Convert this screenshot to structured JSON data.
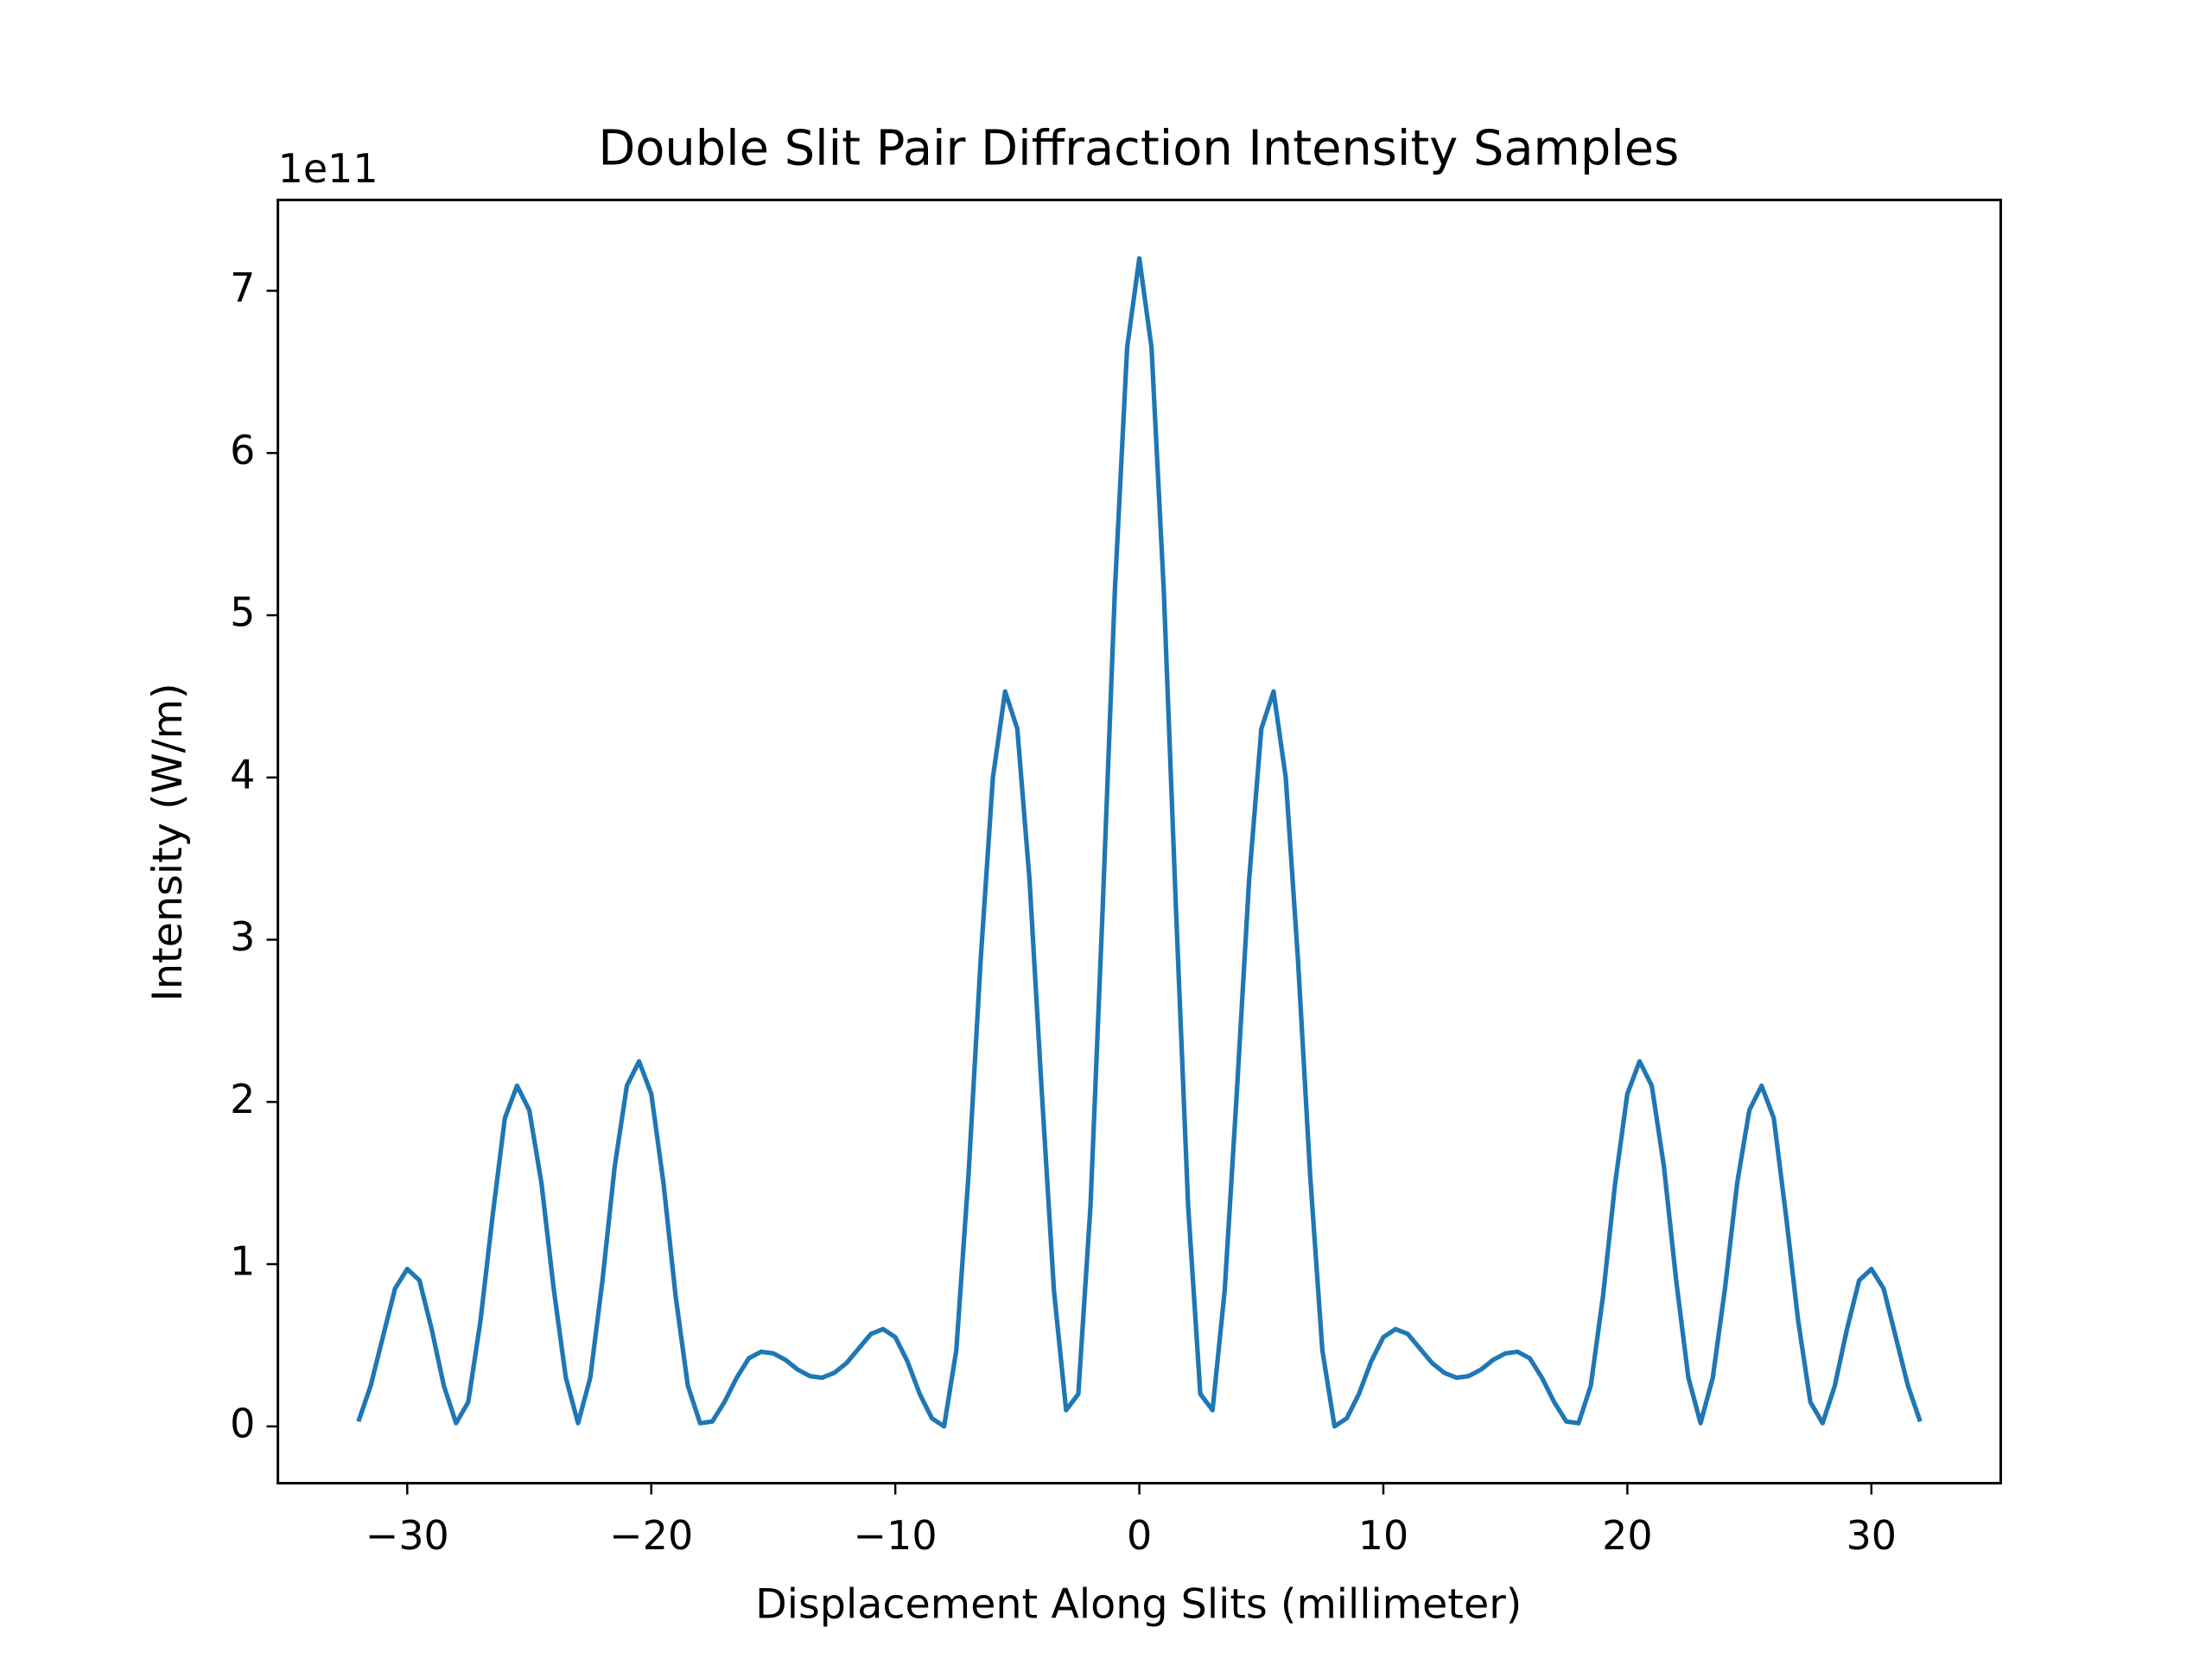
{
  "chart_data": {
    "type": "line",
    "title": "Double Slit Pair Diffraction Intensity Samples",
    "x_label": "Displacement Along Slits (millimeter)",
    "y_label": "Intensity (W/m)",
    "y_offset_label": "1e11",
    "x": [
      -32,
      -31.5,
      -31,
      -30.5,
      -30,
      -29.5,
      -29,
      -28.5,
      -28,
      -27.5,
      -27,
      -26.5,
      -26,
      -25.5,
      -25,
      -24.5,
      -24,
      -23.5,
      -23,
      -22.5,
      -22,
      -21.5,
      -21,
      -20.5,
      -20,
      -19.5,
      -19,
      -18.5,
      -18,
      -17.5,
      -17,
      -16.5,
      -16,
      -15.5,
      -15,
      -14.5,
      -14,
      -13.5,
      -13,
      -12.5,
      -12,
      -11.5,
      -11,
      -10.5,
      -10,
      -9.5,
      -9,
      -8.5,
      -8,
      -7.5,
      -7,
      -6.5,
      -6,
      -5.5,
      -5,
      -4.5,
      -4,
      -3.5,
      -3,
      -2.5,
      -2,
      -1.5,
      -1,
      -0.5,
      0,
      0.5,
      1,
      1.5,
      2,
      2.5,
      3,
      3.5,
      4,
      4.5,
      5,
      5.5,
      6,
      6.5,
      7,
      7.5,
      8,
      8.5,
      9,
      9.5,
      10,
      10.5,
      11,
      11.5,
      12,
      12.5,
      13,
      13.5,
      14,
      14.5,
      15,
      15.5,
      16,
      16.5,
      17,
      17.5,
      18,
      18.5,
      19,
      19.5,
      20,
      20.5,
      21,
      21.5,
      22,
      22.5,
      23,
      23.5,
      24,
      24.5,
      25,
      25.5,
      26,
      26.5,
      27,
      27.5,
      28,
      28.5,
      29,
      29.5,
      30,
      30.5,
      31,
      31.5,
      32
    ],
    "series": [
      {
        "name": "Intensity",
        "color": "#1f77b4",
        "values": [
          0.03,
          0.25,
          0.55,
          0.85,
          0.97,
          0.9,
          0.6,
          0.25,
          0.02,
          0.15,
          0.65,
          1.3,
          1.9,
          2.1,
          1.95,
          1.5,
          0.85,
          0.3,
          0.02,
          0.3,
          0.9,
          1.6,
          2.1,
          2.25,
          2.05,
          1.5,
          0.8,
          0.25,
          0.02,
          0.03,
          0.15,
          0.3,
          0.42,
          0.46,
          0.45,
          0.41,
          0.35,
          0.31,
          0.3,
          0.33,
          0.39,
          0.48,
          0.57,
          0.6,
          0.55,
          0.4,
          0.2,
          0.05,
          0.0,
          0.47,
          1.55,
          2.88,
          4.0,
          4.53,
          4.3,
          3.37,
          2.07,
          0.84,
          0.1,
          0.2,
          1.36,
          3.2,
          5.16,
          6.65,
          7.2,
          6.65,
          5.16,
          3.2,
          1.36,
          0.2,
          0.1,
          0.84,
          2.07,
          3.37,
          4.3,
          4.53,
          4.0,
          2.88,
          1.55,
          0.47,
          0.0,
          0.05,
          0.2,
          0.4,
          0.55,
          0.6,
          0.57,
          0.48,
          0.39,
          0.33,
          0.3,
          0.31,
          0.35,
          0.41,
          0.45,
          0.46,
          0.42,
          0.3,
          0.15,
          0.03,
          0.02,
          0.25,
          0.8,
          1.5,
          2.05,
          2.25,
          2.1,
          1.6,
          0.9,
          0.3,
          0.02,
          0.3,
          0.85,
          1.5,
          1.95,
          2.1,
          1.9,
          1.3,
          0.65,
          0.15,
          0.02,
          0.25,
          0.6,
          0.9,
          0.97,
          0.85,
          0.55,
          0.25,
          0.03
        ]
      }
    ],
    "xlim": [
      -35.3,
      35.3
    ],
    "ylim": [
      -0.35,
      7.56
    ],
    "xticks": [
      {
        "value": -30,
        "label": "−30"
      },
      {
        "value": -20,
        "label": "−20"
      },
      {
        "value": -10,
        "label": "−10"
      },
      0,
      10,
      20,
      30
    ],
    "yticks": [
      0,
      1,
      2,
      3,
      4,
      5,
      6,
      7
    ],
    "grid": false
  }
}
